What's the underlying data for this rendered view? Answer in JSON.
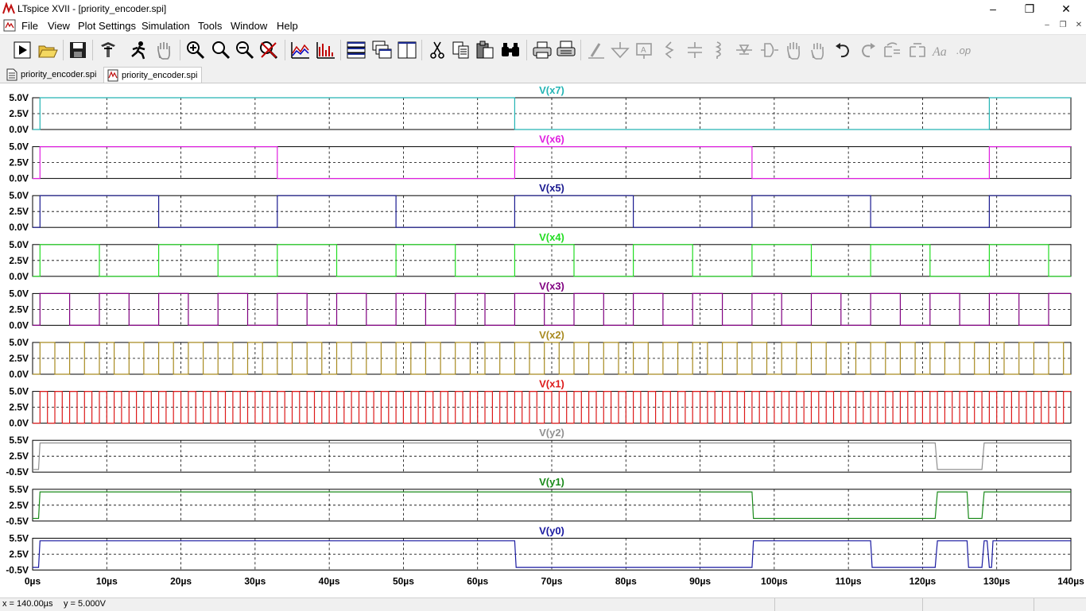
{
  "window": {
    "title": "LTspice XVII - [priority_encoder.spi]"
  },
  "menu": [
    "File",
    "View",
    "Plot Settings",
    "Simulation",
    "Tools",
    "Window",
    "Help"
  ],
  "toolbar_icons": [
    "run-icon",
    "open-icon",
    "save-icon",
    "control-panel-icon",
    "halt-icon",
    "pan-icon",
    "zoom-in-icon",
    "zoom-area-icon",
    "zoom-out-icon",
    "zoom-cancel-icon",
    "autorange-icon",
    "fft-icon",
    "tile-horizontal-icon",
    "cascade-icon",
    "tile-vertical-icon",
    "cut-icon",
    "copy-icon",
    "paste-icon",
    "find-icon",
    "print-icon",
    "print-setup-icon",
    "wire-icon",
    "ground-icon",
    "label-net-icon",
    "resistor-icon",
    "capacitor-icon",
    "inductor-icon",
    "diode-icon",
    "component-icon",
    "move-icon",
    "drag-icon",
    "undo-icon",
    "redo-icon",
    "rotate-icon",
    "mirror-icon",
    "text-icon",
    "spice-directive-icon"
  ],
  "tabs": [
    {
      "label": "priority_encoder.spi",
      "kind": "netlist"
    },
    {
      "label": "priority_encoder.spi",
      "kind": "waveform"
    }
  ],
  "chart_data": {
    "type": "line",
    "x_unit": "µs",
    "xlim": [
      0,
      140
    ],
    "x_ticks": [
      "0µs",
      "10µs",
      "20µs",
      "30µs",
      "40µs",
      "50µs",
      "60µs",
      "70µs",
      "80µs",
      "90µs",
      "100µs",
      "110µs",
      "120µs",
      "130µs",
      "140µs"
    ],
    "grid": true,
    "panes": [
      {
        "name": "V(x7)",
        "color": "#24b5b5",
        "ylim": [
          0,
          5
        ],
        "y_ticks": [
          "5.0V",
          "2.5V",
          "0.0V"
        ],
        "t0": 1,
        "period": 128
      },
      {
        "name": "V(x6)",
        "color": "#e020e0",
        "ylim": [
          0,
          5
        ],
        "y_ticks": [
          "5.0V",
          "2.5V",
          "0.0V"
        ],
        "t0": 1,
        "period": 64
      },
      {
        "name": "V(x5)",
        "color": "#1a1a90",
        "ylim": [
          0,
          5
        ],
        "y_ticks": [
          "5.0V",
          "2.5V",
          "0.0V"
        ],
        "t0": 1,
        "period": 32
      },
      {
        "name": "V(x4)",
        "color": "#22dd22",
        "ylim": [
          0,
          5
        ],
        "y_ticks": [
          "5.0V",
          "2.5V",
          "0.0V"
        ],
        "t0": 1,
        "period": 16
      },
      {
        "name": "V(x3)",
        "color": "#800080",
        "ylim": [
          0,
          5
        ],
        "y_ticks": [
          "5.0V",
          "2.5V",
          "0.0V"
        ],
        "t0": 1,
        "period": 8
      },
      {
        "name": "V(x2)",
        "color": "#a88a20",
        "ylim": [
          0,
          5
        ],
        "y_ticks": [
          "5.0V",
          "2.5V",
          "0.0V"
        ],
        "t0": 1,
        "period": 4
      },
      {
        "name": "V(x1)",
        "color": "#dd1a1a",
        "ylim": [
          0,
          5
        ],
        "y_ticks": [
          "5.0V",
          "2.5V",
          "0.0V"
        ],
        "t0": 1,
        "period": 2
      },
      {
        "name": "V(y2)",
        "color": "#909090",
        "ylim": [
          -0.5,
          5.5
        ],
        "y_ticks": [
          "5.5V",
          "2.5V",
          "-0.5V"
        ],
        "points": [
          [
            0,
            0
          ],
          [
            0.8,
            0
          ],
          [
            1,
            5
          ],
          [
            121.7,
            5
          ],
          [
            122,
            0
          ],
          [
            128,
            0
          ],
          [
            128.3,
            5
          ],
          [
            140,
            5
          ]
        ]
      },
      {
        "name": "V(y1)",
        "color": "#1a8a1a",
        "ylim": [
          -0.5,
          5.5
        ],
        "y_ticks": [
          "5.5V",
          "2.5V",
          "-0.5V"
        ],
        "points": [
          [
            0,
            0
          ],
          [
            0.8,
            0
          ],
          [
            1,
            5
          ],
          [
            97,
            5
          ],
          [
            97.2,
            0
          ],
          [
            121.7,
            0
          ],
          [
            122,
            5
          ],
          [
            126,
            5
          ],
          [
            126.2,
            0
          ],
          [
            128,
            0
          ],
          [
            128.3,
            5
          ],
          [
            140,
            5
          ]
        ]
      },
      {
        "name": "V(y0)",
        "color": "#1a1aa0",
        "ylim": [
          -0.5,
          5.5
        ],
        "y_ticks": [
          "5.5V",
          "2.5V",
          "-0.5V"
        ],
        "points": [
          [
            0,
            0
          ],
          [
            0.8,
            0
          ],
          [
            1,
            5
          ],
          [
            65,
            5
          ],
          [
            65.2,
            0
          ],
          [
            97,
            0
          ],
          [
            97.2,
            5
          ],
          [
            113,
            5
          ],
          [
            113.2,
            0
          ],
          [
            121.7,
            0
          ],
          [
            122,
            5
          ],
          [
            126,
            5
          ],
          [
            126.2,
            0
          ],
          [
            128,
            0
          ],
          [
            128.3,
            5
          ],
          [
            128.7,
            5
          ],
          [
            129,
            0
          ],
          [
            129.3,
            0
          ],
          [
            129.5,
            5
          ],
          [
            140,
            5
          ]
        ]
      }
    ]
  },
  "status": {
    "x_readout": "x = 140.00µs",
    "y_readout": "y = 5.000V"
  }
}
